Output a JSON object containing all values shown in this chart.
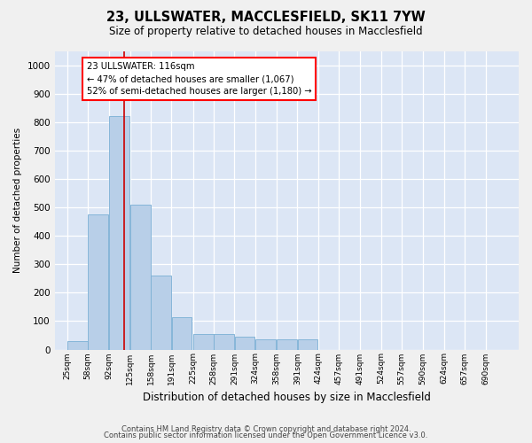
{
  "title": "23, ULLSWATER, MACCLESFIELD, SK11 7YW",
  "subtitle": "Size of property relative to detached houses in Macclesfield",
  "xlabel": "Distribution of detached houses by size in Macclesfield",
  "ylabel": "Number of detached properties",
  "bar_color": "#b8cfe8",
  "bar_edge_color": "#7aafd4",
  "plot_bg_color": "#dce6f5",
  "fig_bg_color": "#f0f0f0",
  "grid_color": "#ffffff",
  "vline_color": "#cc0000",
  "vline_x": 116,
  "annotation_text": "23 ULLSWATER: 116sqm\n← 47% of detached houses are smaller (1,067)\n52% of semi-detached houses are larger (1,180) →",
  "footer_line1": "Contains HM Land Registry data © Crown copyright and database right 2024.",
  "footer_line2": "Contains public sector information licensed under the Open Government Licence v3.0.",
  "categories": [
    "25sqm",
    "58sqm",
    "92sqm",
    "125sqm",
    "158sqm",
    "191sqm",
    "225sqm",
    "258sqm",
    "291sqm",
    "324sqm",
    "358sqm",
    "391sqm",
    "424sqm",
    "457sqm",
    "491sqm",
    "524sqm",
    "557sqm",
    "590sqm",
    "624sqm",
    "657sqm",
    "690sqm"
  ],
  "bin_left_edges": [
    25,
    58,
    92,
    125,
    158,
    191,
    225,
    258,
    291,
    324,
    358,
    391,
    424,
    457,
    491,
    524,
    557,
    590,
    624,
    657,
    690
  ],
  "bin_width": 33,
  "values": [
    30,
    475,
    820,
    510,
    260,
    115,
    55,
    55,
    45,
    35,
    35,
    35,
    0,
    0,
    0,
    0,
    0,
    0,
    0,
    0,
    0
  ],
  "ylim": [
    0,
    1050
  ],
  "yticks": [
    0,
    100,
    200,
    300,
    400,
    500,
    600,
    700,
    800,
    900,
    1000
  ]
}
